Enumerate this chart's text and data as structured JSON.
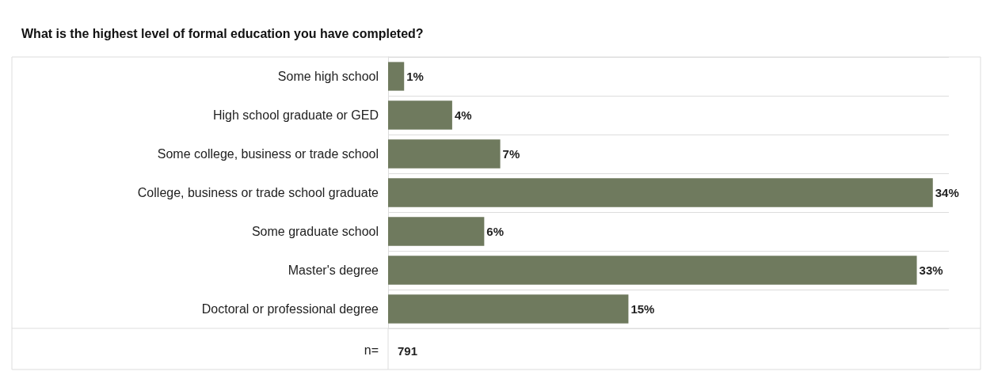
{
  "chart_data": {
    "type": "bar",
    "orientation": "horizontal",
    "title": "What is the highest level of formal education you have completed?",
    "categories": [
      "Some high school",
      "High school graduate or GED",
      "Some college, business or trade school",
      "College, business or trade school graduate",
      "Some graduate school",
      "Master's degree",
      "Doctoral or professional degree"
    ],
    "values": [
      1,
      4,
      7,
      34,
      6,
      33,
      15
    ],
    "value_labels": [
      "1%",
      "4%",
      "7%",
      "34%",
      "6%",
      "33%",
      "15%"
    ],
    "color": "#6f7a5e",
    "grid": "y",
    "annotations": [
      "n=",
      "791"
    ]
  }
}
